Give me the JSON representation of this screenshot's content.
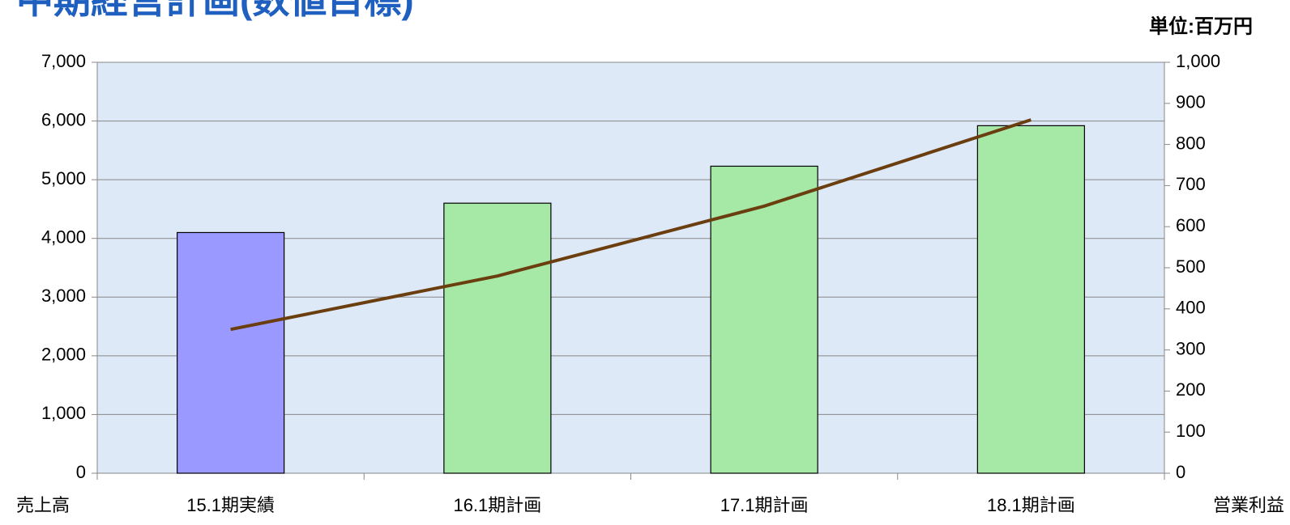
{
  "chart_data": {
    "type": "bar_line",
    "title": "中期経営計画(数値目標)",
    "unit_label": "単位:百万円",
    "y_label": "売上高",
    "y2_label": "営業利益",
    "categories": [
      "15.1期実績",
      "16.1期計画",
      "17.1期計画",
      "18.1期計画"
    ],
    "series": [
      {
        "type": "bar",
        "colors": [
          "#9999ff",
          "#a6e8a6",
          "#a6e8a6",
          "#a6e8a6"
        ],
        "values": [
          4100,
          4600,
          5230,
          5920
        ]
      },
      {
        "type": "line",
        "color": "#6b3e0f",
        "axis": "y2",
        "values": [
          350,
          480,
          650,
          860
        ]
      }
    ],
    "ylim": [
      0,
      7000
    ],
    "yticks": [
      0,
      {
        "value": 1000,
        "label": "1,000"
      },
      {
        "value": 2000,
        "label": "2,000"
      },
      {
        "value": 3000,
        "label": "3,000"
      },
      {
        "value": 4000,
        "label": "4,000"
      },
      {
        "value": 5000,
        "label": "5,000"
      },
      {
        "value": 6000,
        "label": "6,000"
      },
      {
        "value": 7000,
        "label": "7,000"
      }
    ],
    "y2lim": [
      0,
      1000
    ],
    "y2ticks": [
      0,
      100,
      200,
      300,
      400,
      500,
      600,
      700,
      800,
      900,
      {
        "value": 1000,
        "label": "1,000"
      }
    ],
    "grid": true
  }
}
